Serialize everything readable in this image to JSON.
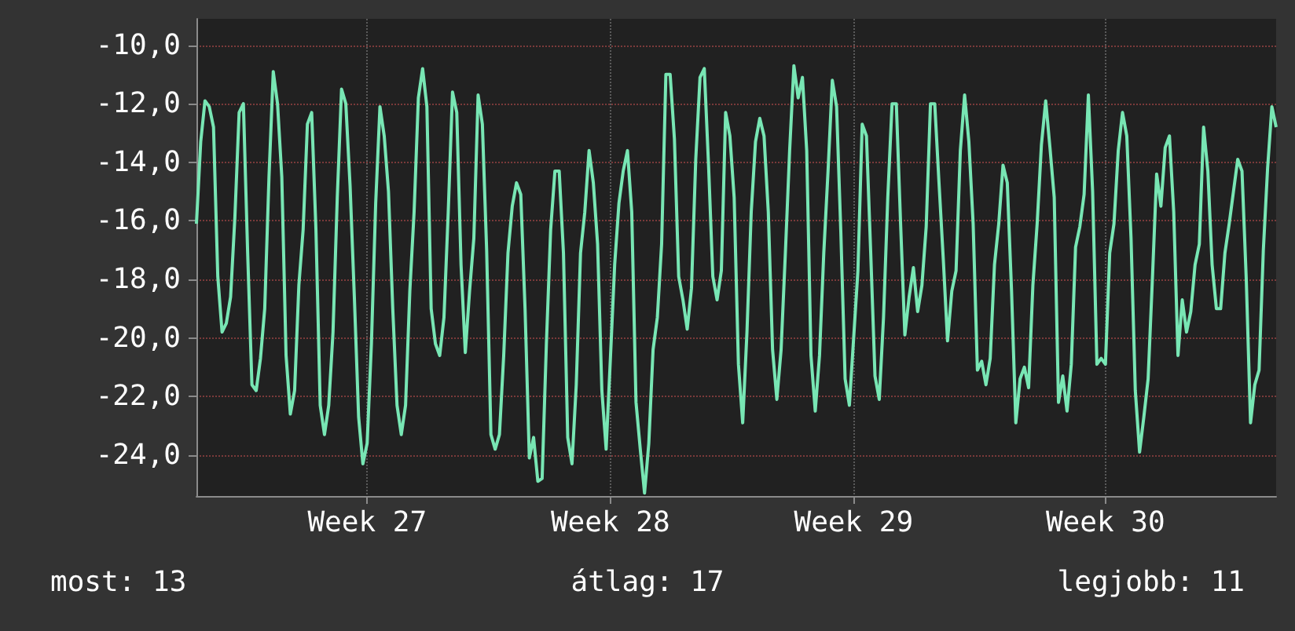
{
  "chart_data": {
    "type": "line",
    "line_style": "solid",
    "marker": "none",
    "grid": true,
    "categories": [
      null,
      null,
      null,
      null,
      null,
      null,
      null,
      null,
      null,
      null,
      null,
      null,
      null,
      null,
      null,
      null,
      null,
      null,
      null,
      null,
      null,
      null,
      null,
      null,
      null,
      null,
      null,
      null,
      null,
      null,
      null,
      null,
      null,
      null,
      null,
      null,
      null,
      null,
      null,
      null,
      "Week 27",
      null,
      null,
      null,
      null,
      null,
      null,
      null,
      null,
      null,
      null,
      null,
      null,
      null,
      null,
      null,
      null,
      null,
      null,
      null,
      null,
      null,
      null,
      null,
      null,
      null,
      null,
      null,
      null,
      null,
      null,
      null,
      null,
      null,
      null,
      null,
      null,
      null,
      null,
      null,
      null,
      null,
      null,
      null,
      null,
      null,
      null,
      null,
      null,
      null,
      null,
      null,
      null,
      null,
      null,
      null,
      null,
      "Week 28",
      null,
      null,
      null,
      null,
      null,
      null,
      null,
      null,
      null,
      null,
      null,
      null,
      null,
      null,
      null,
      null,
      null,
      null,
      null,
      null,
      null,
      null,
      null,
      null,
      null,
      null,
      null,
      null,
      null,
      null,
      null,
      null,
      null,
      null,
      null,
      null,
      null,
      null,
      null,
      null,
      null,
      null,
      null,
      null,
      null,
      null,
      null,
      null,
      null,
      null,
      null,
      null,
      null,
      null,
      null,
      null,
      "Week 29",
      null,
      null,
      null,
      null,
      null,
      null,
      null,
      null,
      null,
      null,
      null,
      null,
      null,
      null,
      null,
      null,
      null,
      null,
      null,
      null,
      null,
      null,
      null,
      null,
      null,
      null,
      null,
      null,
      null,
      null,
      null,
      null,
      null,
      null,
      null,
      null,
      null,
      null,
      null,
      null,
      null,
      null,
      null,
      null,
      null,
      null,
      null,
      null,
      null,
      null,
      null,
      null,
      null,
      null,
      null,
      null,
      null,
      null,
      "Week 30",
      null,
      null,
      null,
      null,
      null,
      null,
      null,
      null,
      null,
      null,
      null,
      null,
      null,
      null,
      null,
      null,
      null,
      null,
      null,
      null,
      null,
      null,
      null,
      null,
      null,
      null,
      null,
      null,
      null,
      null,
      null,
      null,
      null,
      null,
      null,
      null,
      null,
      null,
      null,
      null
    ],
    "ylim": [
      -25.4,
      -9.1
    ],
    "yticks": [
      {
        "value": -24,
        "label": "-24,0"
      },
      {
        "value": -22,
        "label": "-22,0"
      },
      {
        "value": -20,
        "label": "-20,0"
      },
      {
        "value": -18,
        "label": "-18,0"
      },
      {
        "value": -16,
        "label": "-16,0"
      },
      {
        "value": -14,
        "label": "-14,0"
      },
      {
        "value": -12,
        "label": "-12,0"
      },
      {
        "value": -10,
        "label": "-10,0"
      }
    ],
    "annotations": [
      "most: 13",
      "átlag: 17",
      "legjobb: 11"
    ],
    "series": [
      {
        "color": "#78e6b4",
        "values": [
          -16.1,
          -13.3,
          -11.9,
          -12.1,
          -12.8,
          -17.9,
          -19.8,
          -19.5,
          -18.6,
          -15.9,
          -12.3,
          -12.0,
          -17.1,
          -21.6,
          -21.8,
          -20.7,
          -19.0,
          -14.5,
          -10.9,
          -12.0,
          -14.5,
          -20.6,
          -22.6,
          -21.8,
          -18.2,
          -16.3,
          -12.7,
          -12.3,
          -16.3,
          -22.3,
          -23.3,
          -22.3,
          -19.8,
          -15.2,
          -11.5,
          -12.0,
          -14.8,
          -18.6,
          -22.7,
          -24.3,
          -23.6,
          -20.2,
          -15.4,
          -12.1,
          -13.1,
          -15.0,
          -19.0,
          -22.3,
          -23.3,
          -22.3,
          -18.4,
          -15.7,
          -11.8,
          -10.8,
          -12.1,
          -19.0,
          -20.2,
          -20.6,
          -19.3,
          -15.7,
          -11.6,
          -12.3,
          -17.5,
          -20.5,
          -18.4,
          -16.6,
          -11.7,
          -12.7,
          -17.0,
          -23.3,
          -23.8,
          -23.3,
          -20.6,
          -17.1,
          -15.5,
          -14.7,
          -15.1,
          -19.0,
          -24.1,
          -23.4,
          -24.9,
          -24.8,
          -20.2,
          -16.3,
          -14.3,
          -14.3,
          -17.1,
          -23.4,
          -24.3,
          -21.6,
          -17.1,
          -15.7,
          -13.6,
          -14.7,
          -16.8,
          -21.8,
          -23.8,
          -20.7,
          -17.5,
          -15.4,
          -14.3,
          -13.6,
          -15.7,
          -22.2,
          -23.8,
          -25.3,
          -23.6,
          -20.4,
          -19.3,
          -16.8,
          -11.0,
          -11.0,
          -13.2,
          -17.9,
          -18.7,
          -19.7,
          -18.3,
          -13.9,
          -11.1,
          -10.8,
          -14.1,
          -17.9,
          -18.7,
          -17.7,
          -12.3,
          -13.1,
          -15.2,
          -20.9,
          -22.9,
          -19.8,
          -15.7,
          -13.3,
          -12.5,
          -13.1,
          -15.7,
          -20.4,
          -22.1,
          -20.4,
          -17.1,
          -13.6,
          -10.7,
          -11.8,
          -11.1,
          -13.6,
          -20.6,
          -22.5,
          -20.6,
          -17.1,
          -14.3,
          -11.2,
          -12.1,
          -16.4,
          -21.4,
          -22.3,
          -20.0,
          -17.7,
          -12.7,
          -13.1,
          -17.1,
          -21.3,
          -22.1,
          -19.3,
          -15.2,
          -12.0,
          -12.0,
          -16.1,
          -19.9,
          -18.6,
          -17.6,
          -19.1,
          -18.2,
          -16.2,
          -12.0,
          -12.0,
          -14.7,
          -17.3,
          -20.1,
          -18.4,
          -17.7,
          -13.6,
          -11.7,
          -13.3,
          -16.1,
          -21.1,
          -20.8,
          -21.6,
          -20.7,
          -17.5,
          -16.1,
          -14.1,
          -14.7,
          -18.4,
          -22.9,
          -21.4,
          -21.0,
          -21.7,
          -18.2,
          -16.1,
          -13.4,
          -11.9,
          -13.5,
          -15.2,
          -22.2,
          -21.3,
          -22.5,
          -20.9,
          -16.9,
          -16.2,
          -15.1,
          -11.7,
          -15.0,
          -20.9,
          -20.7,
          -20.9,
          -17.1,
          -16.1,
          -13.6,
          -12.3,
          -13.1,
          -16.6,
          -21.8,
          -23.9,
          -22.7,
          -21.4,
          -18.0,
          -14.4,
          -15.5,
          -13.5,
          -13.1,
          -15.7,
          -20.6,
          -18.7,
          -19.8,
          -19.1,
          -17.5,
          -16.8,
          -12.8,
          -14.3,
          -17.5,
          -19.0,
          -19.0,
          -17.1,
          -16.1,
          -15.0,
          -13.9,
          -14.3,
          -18.0,
          -22.9,
          -21.6,
          -21.1,
          -17.0,
          -14.2,
          -12.1,
          -12.8
        ]
      }
    ]
  }
}
